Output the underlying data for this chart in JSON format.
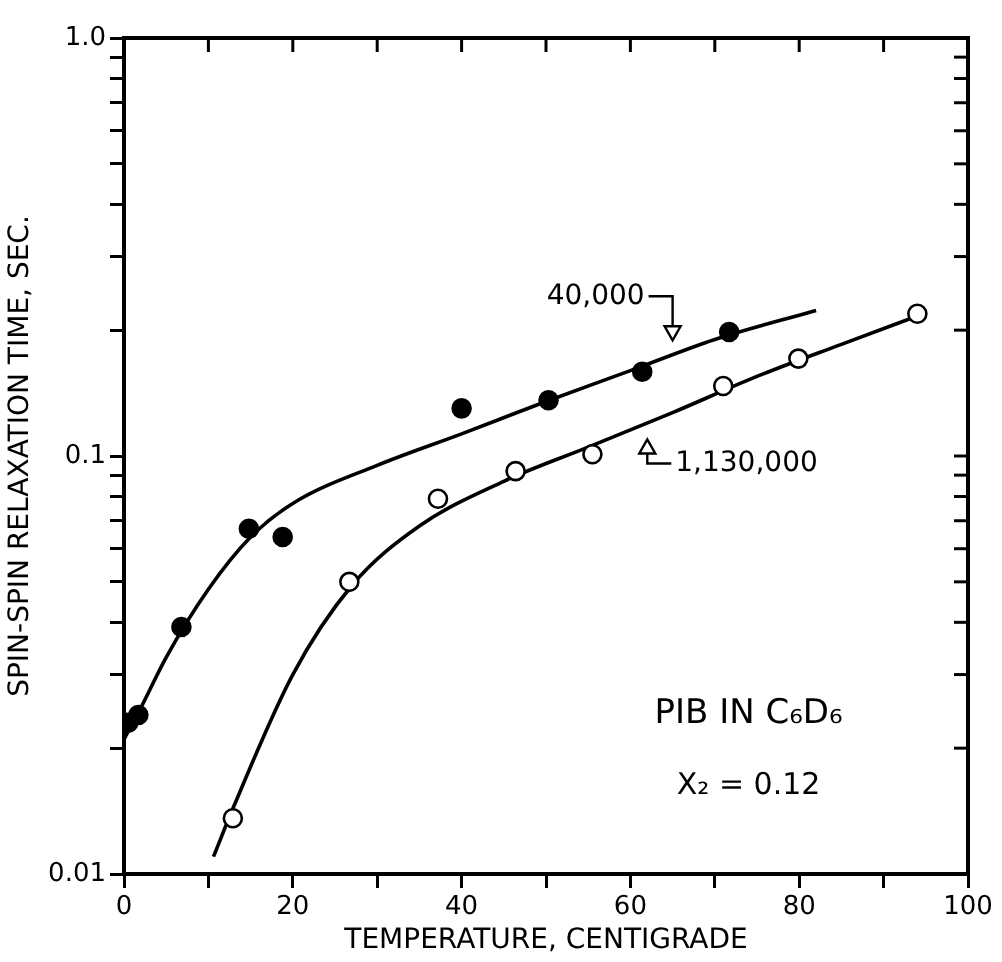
{
  "chart_data": {
    "type": "scatter",
    "xlabel": "TEMPERATURE, CENTIGRADE",
    "ylabel": "SPIN-SPIN RELAXATION TIME, SEC.",
    "xlim": [
      0,
      100
    ],
    "xticks": [
      0,
      {
        "value": 10,
        "label": null
      },
      20,
      {
        "value": 30,
        "label": null
      },
      40,
      {
        "value": 50,
        "label": null
      },
      60,
      {
        "value": 70,
        "label": null
      },
      80,
      {
        "value": 90,
        "label": null
      },
      100
    ],
    "ylim": [
      0.01,
      1
    ],
    "yticks": [
      0.01,
      {
        "value": 0.02,
        "label": null
      },
      {
        "value": 0.03,
        "label": null
      },
      {
        "value": 0.04,
        "label": null
      },
      {
        "value": 0.05,
        "label": null
      },
      {
        "value": 0.06,
        "label": null
      },
      {
        "value": 0.07,
        "label": null
      },
      {
        "value": 0.08,
        "label": null
      },
      {
        "value": 0.09,
        "label": null
      },
      0.1,
      {
        "value": 0.2,
        "label": null
      },
      {
        "value": 0.3,
        "label": null
      },
      {
        "value": 0.4,
        "label": null
      },
      {
        "value": 0.5,
        "label": null
      },
      {
        "value": 0.6,
        "label": null
      },
      {
        "value": 0.7,
        "label": null
      },
      {
        "value": 0.8,
        "label": null
      },
      {
        "value": 0.9,
        "label": null
      },
      {
        "value": 1,
        "label": "1.0"
      }
    ],
    "log": "y",
    "grid": false,
    "legend": false,
    "marker": "circle",
    "series": [
      {
        "color": "#000000",
        "x": [
          0.5,
          1.7,
          6.8,
          14.8,
          18.8,
          40,
          50.3,
          61.4,
          71.7
        ],
        "values": [
          0.023,
          0.024,
          0.039,
          0.067,
          0.064,
          0.13,
          0.136,
          0.159,
          0.198
        ]
      },
      {
        "color": "#ffffff",
        "x": [
          12.9,
          26.7,
          37.2,
          46.4,
          55.5,
          71,
          79.9,
          94
        ],
        "values": [
          0.0136,
          0.05,
          0.079,
          0.092,
          0.101,
          0.147,
          0.171,
          0.219
        ]
      },
      {
        "type": "line",
        "color": "#000000",
        "marker": "none",
        "x": [
          0,
          2,
          5,
          10,
          15,
          20,
          30,
          40,
          50,
          60,
          70,
          82
        ],
        "values": [
          0.021,
          0.025,
          0.033,
          0.048,
          0.064,
          0.077,
          0.095,
          0.113,
          0.135,
          0.16,
          0.19,
          0.223
        ]
      },
      {
        "type": "line",
        "color": "#000000",
        "marker": "none",
        "x": [
          10.6,
          13,
          20,
          27,
          35,
          45,
          55,
          65,
          75,
          85,
          95
        ],
        "values": [
          0.011,
          0.0145,
          0.03,
          0.049,
          0.068,
          0.087,
          0.105,
          0.127,
          0.155,
          0.185,
          0.22
        ]
      }
    ],
    "annotations": [
      {
        "text": "40,000",
        "x": 65,
        "y": 0.185
      },
      {
        "text": "1,130,000",
        "x": 62,
        "y": 0.112
      },
      "PIB IN C₆D₆",
      "X₂ = 0.12"
    ]
  }
}
